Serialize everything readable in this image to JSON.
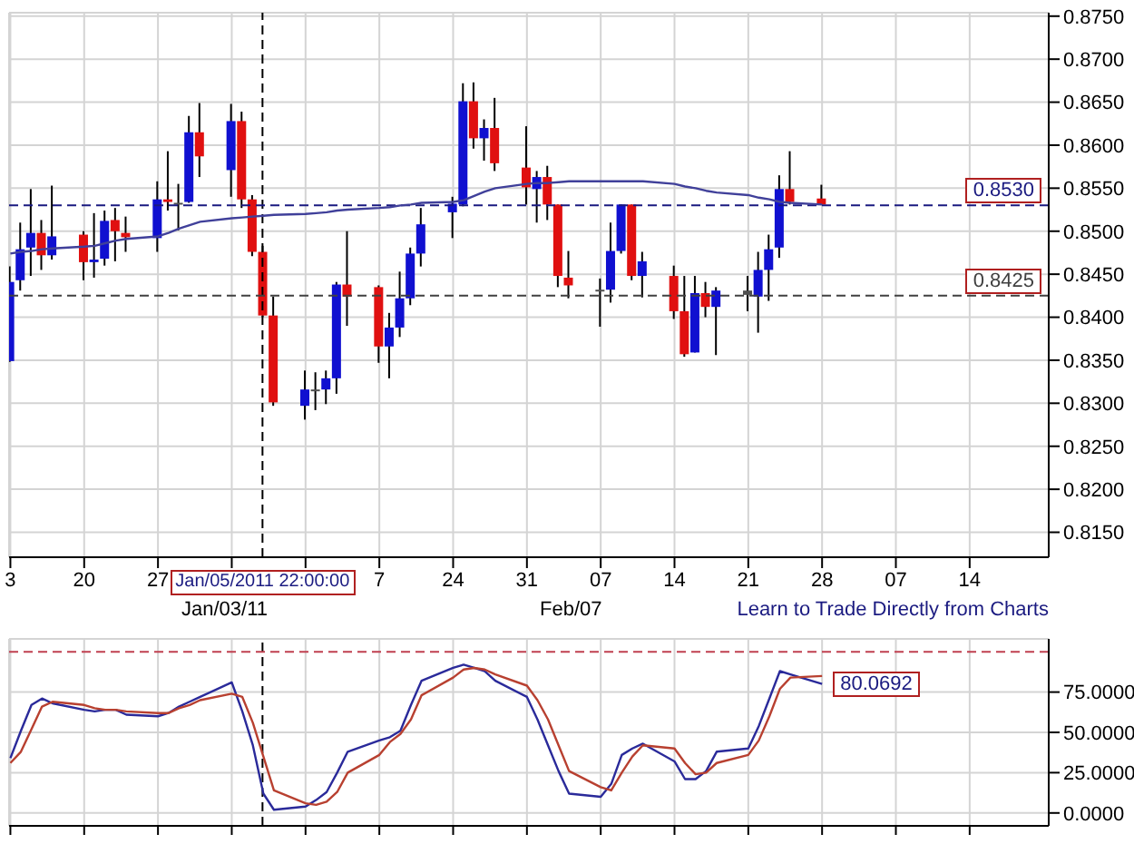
{
  "chart_data": [
    {
      "type": "candlestick",
      "x": [
        "2010-12-13",
        "2010-12-14",
        "2010-12-15",
        "2010-12-16",
        "2010-12-17",
        "2010-12-20",
        "2010-12-21",
        "2010-12-22",
        "2010-12-23",
        "2010-12-24",
        "2010-12-27",
        "2010-12-28",
        "2010-12-29",
        "2010-12-30",
        "2010-12-31",
        "2011-01-03",
        "2011-01-04",
        "2011-01-05",
        "2011-01-06",
        "2011-01-07",
        "2011-01-10",
        "2011-01-11",
        "2011-01-12",
        "2011-01-13",
        "2011-01-14",
        "2011-01-17",
        "2011-01-18",
        "2011-01-19",
        "2011-01-20",
        "2011-01-21",
        "2011-01-24",
        "2011-01-25",
        "2011-01-26",
        "2011-01-27",
        "2011-01-28",
        "2011-01-31",
        "2011-02-01",
        "2011-02-02",
        "2011-02-03",
        "2011-02-04",
        "2011-02-07",
        "2011-02-08",
        "2011-02-09",
        "2011-02-10",
        "2011-02-11",
        "2011-02-14",
        "2011-02-15",
        "2011-02-16",
        "2011-02-17",
        "2011-02-18",
        "2011-02-21",
        "2011-02-22",
        "2011-02-23",
        "2011-02-24",
        "2011-02-25",
        "2011-02-28"
      ],
      "ohlc": [
        [
          0.8349,
          0.8459,
          0.8348,
          0.8441
        ],
        [
          0.8443,
          0.851,
          0.8431,
          0.8479
        ],
        [
          0.8481,
          0.8549,
          0.8448,
          0.8498
        ],
        [
          0.8498,
          0.8513,
          0.8455,
          0.8472
        ],
        [
          0.8472,
          0.8553,
          0.8467,
          0.8494
        ],
        [
          0.8496,
          0.85,
          0.8443,
          0.8464
        ],
        [
          0.8464,
          0.8521,
          0.8446,
          0.8467
        ],
        [
          0.8468,
          0.8524,
          0.846,
          0.8512
        ],
        [
          0.8513,
          0.8527,
          0.8465,
          0.85
        ],
        [
          0.8498,
          0.8517,
          0.8476,
          0.8493
        ],
        [
          0.8492,
          0.8558,
          0.8476,
          0.8537
        ],
        [
          0.8537,
          0.8593,
          0.8524,
          0.8534
        ],
        [
          0.8533,
          0.8555,
          0.8501,
          0.8531
        ],
        [
          0.8534,
          0.8634,
          0.8533,
          0.8615
        ],
        [
          0.8615,
          0.8649,
          0.8563,
          0.8587
        ],
        [
          0.8571,
          0.8648,
          0.854,
          0.8628
        ],
        [
          0.8628,
          0.8639,
          0.8527,
          0.8537
        ],
        [
          0.8537,
          0.8542,
          0.8471,
          0.8476
        ],
        [
          0.8476,
          0.8483,
          0.84,
          0.8402
        ],
        [
          0.8402,
          0.8424,
          0.8297,
          0.8301
        ],
        [
          0.8297,
          0.8338,
          0.8281,
          0.8316
        ],
        [
          0.8314,
          0.8336,
          0.8292,
          0.8316
        ],
        [
          0.8316,
          0.8338,
          0.8299,
          0.8329
        ],
        [
          0.8329,
          0.8441,
          0.8311,
          0.8438
        ],
        [
          0.8438,
          0.85,
          0.839,
          0.8424
        ],
        [
          0.8435,
          0.8437,
          0.8347,
          0.8366
        ],
        [
          0.8366,
          0.8405,
          0.8329,
          0.8388
        ],
        [
          0.8388,
          0.8453,
          0.8377,
          0.8422
        ],
        [
          0.8422,
          0.8481,
          0.8414,
          0.8474
        ],
        [
          0.8474,
          0.8527,
          0.8459,
          0.8508
        ],
        [
          0.8522,
          0.854,
          0.8492,
          0.8532
        ],
        [
          0.8531,
          0.8672,
          0.8529,
          0.8651
        ],
        [
          0.8651,
          0.8673,
          0.8596,
          0.8608
        ],
        [
          0.8608,
          0.863,
          0.8582,
          0.862
        ],
        [
          0.862,
          0.8655,
          0.857,
          0.8579
        ],
        [
          0.8574,
          0.8622,
          0.8531,
          0.8551
        ],
        [
          0.8549,
          0.857,
          0.851,
          0.8563
        ],
        [
          0.8563,
          0.8576,
          0.8513,
          0.8531
        ],
        [
          0.8531,
          0.8531,
          0.8435,
          0.8448
        ],
        [
          0.8446,
          0.8477,
          0.8422,
          0.8437
        ],
        [
          0.843,
          0.8445,
          0.8389,
          0.8432
        ],
        [
          0.8432,
          0.851,
          0.8417,
          0.8477
        ],
        [
          0.8477,
          0.8531,
          0.8474,
          0.8531
        ],
        [
          0.8531,
          0.8531,
          0.8443,
          0.8448
        ],
        [
          0.8448,
          0.8476,
          0.8423,
          0.8465
        ],
        [
          0.8448,
          0.846,
          0.8398,
          0.8407
        ],
        [
          0.8407,
          0.8448,
          0.8354,
          0.8357
        ],
        [
          0.8359,
          0.8448,
          0.8359,
          0.8428
        ],
        [
          0.8428,
          0.8441,
          0.84,
          0.8412
        ],
        [
          0.8412,
          0.8435,
          0.8356,
          0.8431
        ],
        [
          0.8426,
          0.8448,
          0.8407,
          0.8431
        ],
        [
          0.8424,
          0.8476,
          0.8382,
          0.8455
        ],
        [
          0.8455,
          0.8496,
          0.8419,
          0.8479
        ],
        [
          0.8481,
          0.8565,
          0.8469,
          0.8549
        ],
        [
          0.8549,
          0.8593,
          0.8531,
          0.8534
        ],
        [
          0.8538,
          0.8554,
          0.8531,
          0.8531
        ]
      ],
      "colors": [
        "#1010d0",
        "#1010d0",
        "#1010d0",
        "#e01010",
        "#1010d0",
        "#e01010",
        "#1010d0",
        "#1010d0",
        "#e01010",
        "#e01010",
        "#1010d0",
        "#e01010",
        "#505050",
        "#1010d0",
        "#e01010",
        "#1010d0",
        "#e01010",
        "#e01010",
        "#e01010",
        "#e01010",
        "#1010d0",
        "#505050",
        "#1010d0",
        "#1010d0",
        "#e01010",
        "#e01010",
        "#1010d0",
        "#1010d0",
        "#1010d0",
        "#1010d0",
        "#1010d0",
        "#1010d0",
        "#e01010",
        "#1010d0",
        "#e01010",
        "#e01010",
        "#1010d0",
        "#e01010",
        "#e01010",
        "#e01010",
        "#505050",
        "#1010d0",
        "#1010d0",
        "#e01010",
        "#1010d0",
        "#e01010",
        "#e01010",
        "#1010d0",
        "#e01010",
        "#1010d0",
        "#505050",
        "#1010d0",
        "#1010d0",
        "#1010d0",
        "#e01010",
        "#e01010"
      ],
      "series": [
        {
          "type": "line",
          "color": "#40409a",
          "values": [
            0.8474,
            0.8476,
            0.8477,
            0.8479,
            0.848,
            0.8482,
            0.8483,
            0.8486,
            0.8489,
            0.8491,
            0.8494,
            0.8498,
            0.8503,
            0.8507,
            0.8511,
            0.8515,
            0.8516,
            0.8517,
            0.8518,
            0.8519,
            0.852,
            0.8521,
            0.8522,
            0.8524,
            0.8525,
            0.8527,
            0.8528,
            0.853,
            0.8531,
            0.8533,
            0.8534,
            0.8536,
            0.8541,
            0.8546,
            0.855,
            0.8555,
            0.8556,
            0.8556,
            0.8557,
            0.8558,
            0.8558,
            0.8558,
            0.8558,
            0.8558,
            0.8558,
            0.8555,
            0.8552,
            0.855,
            0.8547,
            0.8545,
            0.8542,
            0.8539,
            0.8537,
            0.8534,
            0.8533,
            0.8531
          ]
        }
      ],
      "xlim": [
        "2010-12-12T21:00",
        "2011-03-21T12:00"
      ],
      "xticks": [
        {
          "value": "2010-12-13",
          "label": "3"
        },
        {
          "value": "2010-12-20",
          "label": "20"
        },
        {
          "value": "2010-12-27",
          "label": "27"
        },
        {
          "value": "2011-01-03",
          "label": null
        },
        {
          "value": "2011-01-10",
          "label": null
        },
        {
          "value": "2011-01-17",
          "label": "7"
        },
        {
          "value": "2011-01-24",
          "label": "24"
        },
        {
          "value": "2011-01-31",
          "label": "31"
        },
        {
          "value": "2011-02-07",
          "label": "07"
        },
        {
          "value": "2011-02-14",
          "label": "14"
        },
        {
          "value": "2011-02-21",
          "label": "21"
        },
        {
          "value": "2011-02-28",
          "label": "28"
        },
        {
          "value": "2011-03-07",
          "label": "07"
        },
        {
          "value": "2011-03-14",
          "label": "14"
        }
      ],
      "ylim": [
        0.8121,
        0.8754
      ],
      "yticks": [
        {
          "value": 0.815,
          "label": "0.8150"
        },
        {
          "value": 0.82,
          "label": "0.8200"
        },
        {
          "value": 0.825,
          "label": "0.8250"
        },
        {
          "value": 0.83,
          "label": "0.8300"
        },
        {
          "value": 0.835,
          "label": "0.8350"
        },
        {
          "value": 0.84,
          "label": "0.8400"
        },
        {
          "value": 0.845,
          "label": "0.8450"
        },
        {
          "value": 0.85,
          "label": "0.8500"
        },
        {
          "value": 0.855,
          "label": "0.8550"
        },
        {
          "value": 0.86,
          "label": "0.8600"
        },
        {
          "value": 0.865,
          "label": "0.8650"
        },
        {
          "value": 0.87,
          "label": "0.8700"
        },
        {
          "value": 0.875,
          "label": "0.8750"
        }
      ],
      "grid": true,
      "ref_lines": [
        {
          "axis": "x",
          "value": "2011-01-05T22:00",
          "label": "Jan/05/2011 22:00:00",
          "color": "#000000",
          "line_style": "dashed"
        },
        {
          "axis": "y",
          "value": 0.853,
          "label": "0.8530",
          "color": "#1a1a80",
          "line_style": "dashed"
        },
        {
          "axis": "y",
          "value": 0.8425,
          "label": "0.8425",
          "color": "#404040",
          "line_style": "dashed"
        }
      ],
      "annotations": [
        "Jan/03/11",
        "Feb/07",
        "Learn to Trade Directly from Charts"
      ]
    },
    {
      "type": "line",
      "x": [
        "2010-12-13",
        "2010-12-14",
        "2010-12-15",
        "2010-12-16",
        "2010-12-17",
        "2010-12-20",
        "2010-12-21",
        "2010-12-22",
        "2010-12-23",
        "2010-12-24",
        "2010-12-27",
        "2010-12-28",
        "2010-12-29",
        "2010-12-30",
        "2010-12-31",
        "2011-01-03",
        "2011-01-04",
        "2011-01-05",
        "2011-01-06",
        "2011-01-07",
        "2011-01-10",
        "2011-01-11",
        "2011-01-12",
        "2011-01-13",
        "2011-01-14",
        "2011-01-17",
        "2011-01-18",
        "2011-01-19",
        "2011-01-20",
        "2011-01-21",
        "2011-01-24",
        "2011-01-25",
        "2011-01-26",
        "2011-01-27",
        "2011-01-28",
        "2011-01-31",
        "2011-02-01",
        "2011-02-02",
        "2011-02-03",
        "2011-02-04",
        "2011-02-07",
        "2011-02-08",
        "2011-02-09",
        "2011-02-10",
        "2011-02-11",
        "2011-02-14",
        "2011-02-15",
        "2011-02-16",
        "2011-02-17",
        "2011-02-18",
        "2011-02-21",
        "2011-02-22",
        "2011-02-23",
        "2011-02-24",
        "2011-02-25",
        "2011-02-28"
      ],
      "series": [
        {
          "color": "#2a2a9a",
          "values": [
            34,
            51,
            67,
            71,
            68,
            64,
            63,
            64,
            64,
            61,
            60,
            62,
            66,
            69,
            72,
            81,
            63,
            42,
            12,
            2,
            4,
            8,
            13,
            25,
            38,
            45,
            47,
            51,
            67,
            82,
            90,
            92,
            90,
            88,
            82,
            72,
            58,
            42,
            26,
            12,
            10,
            18,
            36,
            40,
            43,
            32,
            21,
            21,
            26,
            38,
            40,
            54,
            71,
            88,
            86,
            80.0692
          ]
        },
        {
          "color": "#b84030",
          "values": [
            31,
            38,
            52,
            66,
            69,
            67,
            65,
            64,
            64,
            63,
            62,
            62,
            65,
            67,
            70,
            74,
            72,
            56,
            35,
            14,
            6,
            5,
            7,
            13,
            25,
            36,
            44,
            49,
            58,
            73,
            84,
            89,
            90,
            89,
            86,
            79,
            70,
            58,
            42,
            26,
            16,
            14,
            25,
            35,
            42,
            40,
            31,
            24,
            25,
            31,
            36,
            45,
            60,
            77,
            84,
            85
          ]
        }
      ],
      "xlim": [
        "2010-12-12T21:00",
        "2011-03-21T12:00"
      ],
      "xticks": [
        {
          "value": "2010-12-13",
          "label": null
        },
        {
          "value": "2010-12-20",
          "label": null
        },
        {
          "value": "2010-12-27",
          "label": null
        },
        {
          "value": "2011-01-03",
          "label": null
        },
        {
          "value": "2011-01-10",
          "label": null
        },
        {
          "value": "2011-01-17",
          "label": null
        },
        {
          "value": "2011-01-24",
          "label": null
        },
        {
          "value": "2011-01-31",
          "label": null
        },
        {
          "value": "2011-02-07",
          "label": null
        },
        {
          "value": "2011-02-14",
          "label": null
        },
        {
          "value": "2011-02-21",
          "label": null
        },
        {
          "value": "2011-02-28",
          "label": null
        },
        {
          "value": "2011-03-07",
          "label": null
        },
        {
          "value": "2011-03-14",
          "label": null
        }
      ],
      "ylim": [
        -8,
        108
      ],
      "yticks": [
        {
          "value": 0,
          "label": "0.0000"
        },
        {
          "value": 25,
          "label": "25.0000"
        },
        {
          "value": 50,
          "label": "50.0000"
        },
        {
          "value": 75,
          "label": "75.0000"
        }
      ],
      "tick_labels": "y",
      "grid": true,
      "ref_lines": [
        {
          "axis": "x",
          "value": "2011-01-05T22:00",
          "color": "#000000",
          "line_style": "dashed"
        },
        {
          "axis": "y",
          "value": 100,
          "color": "#c04050",
          "line_style": "dashed"
        }
      ],
      "annotations": [
        {
          "text": "80.0692",
          "x": "2011-02-28",
          "y": 80.0692
        }
      ]
    }
  ]
}
